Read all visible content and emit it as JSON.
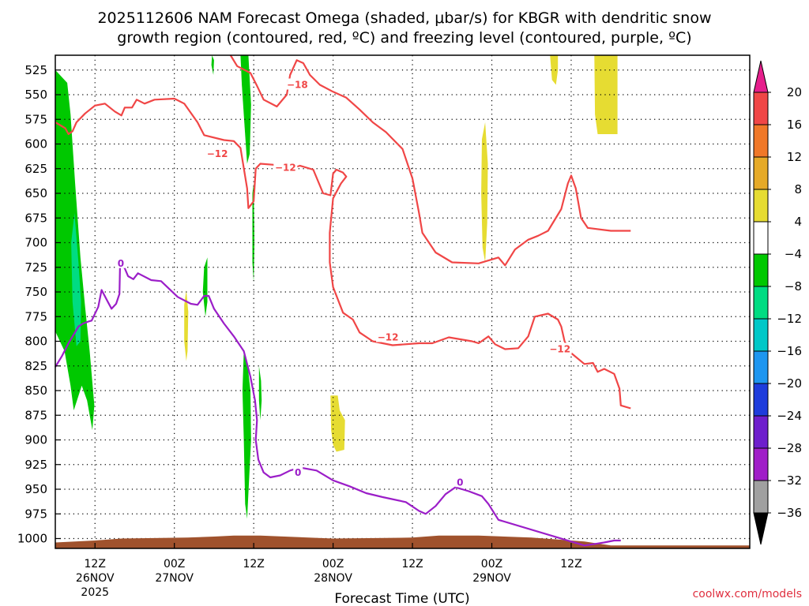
{
  "page": {
    "title_line1": "2025112606 NAM Forecast Omega (shaded, μbar/s) for KBGR with dendritic snow",
    "title_line2": "growth region (contoured, red, ºC) and freezing level (contoured, purple, ºC)",
    "credit": "coolwx.com/models"
  },
  "chart_data": {
    "type": "time-height cross section",
    "title": "2025112606 NAM Forecast Omega (shaded, μbar/s) for KBGR with dendritic snow growth region (contoured, red, ºC) and freezing level (contoured, purple, ºC)",
    "xlabel": "Forecast Time (UTC)",
    "ylabel": "",
    "x_hours_range": [
      6,
      111
    ],
    "y_range_hpa": [
      510,
      1010
    ],
    "y_ticks": [
      525,
      550,
      575,
      600,
      625,
      650,
      675,
      700,
      725,
      750,
      775,
      800,
      825,
      850,
      875,
      900,
      925,
      950,
      975,
      1000
    ],
    "x_ticks": [
      {
        "h": 12,
        "label": "12Z",
        "sub": "26NOV",
        "sub2": "2025"
      },
      {
        "h": 24,
        "label": "00Z",
        "sub": "27NOV",
        "sub2": ""
      },
      {
        "h": 36,
        "label": "12Z",
        "sub": "",
        "sub2": ""
      },
      {
        "h": 48,
        "label": "00Z",
        "sub": "28NOV",
        "sub2": ""
      },
      {
        "h": 60,
        "label": "12Z",
        "sub": "",
        "sub2": ""
      },
      {
        "h": 72,
        "label": "00Z",
        "sub": "29NOV",
        "sub2": ""
      },
      {
        "h": 84,
        "label": "12Z",
        "sub": "",
        "sub2": ""
      }
    ],
    "grid": true,
    "colorbar": {
      "labels": [
        "20",
        "16",
        "12",
        "8",
        "4",
        "−4",
        "−8",
        "−12",
        "−16",
        "−20",
        "−24",
        "−28",
        "−32",
        "−36"
      ],
      "colors": [
        "#e61e8c",
        "#f04646",
        "#f07828",
        "#e6aa28",
        "#e6dc32",
        "#ffffff",
        "#00c800",
        "#00dc82",
        "#00c8c8",
        "#1e96f0",
        "#1e3cdc",
        "#6e1ecc",
        "#a01ec8",
        "#a0a0a0",
        "#000000"
      ]
    },
    "omega_regions": [
      {
        "color": "#00c800",
        "points": [
          [
            6,
            525
          ],
          [
            7.8,
            538
          ],
          [
            8.3,
            570
          ],
          [
            9,
            640
          ],
          [
            9.8,
            715
          ],
          [
            10.5,
            765
          ],
          [
            11.2,
            810
          ],
          [
            11.9,
            865
          ],
          [
            11.6,
            890
          ],
          [
            10.8,
            860
          ],
          [
            10,
            845
          ],
          [
            8.8,
            870
          ],
          [
            8.3,
            845
          ],
          [
            7.4,
            810
          ],
          [
            6,
            790
          ]
        ]
      },
      {
        "color": "#00dc82",
        "points": [
          [
            8.4,
            700
          ],
          [
            8.9,
            670
          ],
          [
            9.5,
            720
          ],
          [
            9.9,
            760
          ],
          [
            9.8,
            800
          ],
          [
            9.2,
            805
          ],
          [
            8.6,
            760
          ]
        ]
      },
      {
        "color": "#00c800",
        "points": [
          [
            29.7,
            510
          ],
          [
            30,
            515
          ],
          [
            29.9,
            530
          ],
          [
            29.6,
            520
          ]
        ]
      },
      {
        "color": "#00c800",
        "points": [
          [
            28.5,
            725
          ],
          [
            29,
            715
          ],
          [
            29,
            760
          ],
          [
            28.7,
            775
          ],
          [
            28.3,
            750
          ]
        ]
      },
      {
        "color": "#00c800",
        "points": [
          [
            34,
            510
          ],
          [
            35.2,
            510
          ],
          [
            35.6,
            560
          ],
          [
            35.4,
            610
          ],
          [
            35,
            620
          ],
          [
            34.6,
            580
          ],
          [
            34.2,
            540
          ]
        ]
      },
      {
        "color": "#00c800",
        "points": [
          [
            35.8,
            650
          ],
          [
            36,
            640
          ],
          [
            36.1,
            700
          ],
          [
            36,
            740
          ],
          [
            35.8,
            720
          ]
        ]
      },
      {
        "color": "#00c800",
        "points": [
          [
            34.5,
            810
          ],
          [
            35,
            820
          ],
          [
            35.5,
            850
          ],
          [
            35.6,
            900
          ],
          [
            35.3,
            940
          ],
          [
            35,
            980
          ],
          [
            34.7,
            965
          ],
          [
            34.5,
            900
          ],
          [
            34.3,
            850
          ]
        ]
      },
      {
        "color": "#00c800",
        "points": [
          [
            36.8,
            825
          ],
          [
            37.1,
            840
          ],
          [
            37.2,
            860
          ],
          [
            37,
            880
          ],
          [
            36.8,
            860
          ]
        ]
      },
      {
        "color": "#e6dc32",
        "points": [
          [
            25.5,
            763
          ],
          [
            25.8,
            748
          ],
          [
            26.1,
            770
          ],
          [
            26,
            810
          ],
          [
            25.8,
            820
          ],
          [
            25.5,
            800
          ]
        ]
      },
      {
        "color": "#e6dc32",
        "points": [
          [
            47.6,
            855
          ],
          [
            48.7,
            855
          ],
          [
            49,
            870
          ],
          [
            49.8,
            880
          ],
          [
            49.7,
            910
          ],
          [
            48.5,
            912
          ],
          [
            48,
            905
          ],
          [
            47.7,
            890
          ]
        ]
      },
      {
        "color": "#e6dc32",
        "points": [
          [
            70.5,
            595
          ],
          [
            71,
            578
          ],
          [
            71.4,
            620
          ],
          [
            71.3,
            680
          ],
          [
            71,
            720
          ],
          [
            70.6,
            705
          ],
          [
            70.4,
            650
          ]
        ]
      },
      {
        "color": "#e6dc32",
        "points": [
          [
            80.8,
            510
          ],
          [
            82,
            510
          ],
          [
            82,
            525
          ],
          [
            81.7,
            540
          ],
          [
            81.1,
            535
          ]
        ]
      },
      {
        "color": "#e6dc32",
        "points": [
          [
            87.5,
            510
          ],
          [
            91,
            510
          ],
          [
            91,
            590
          ],
          [
            88,
            590
          ],
          [
            87.6,
            570
          ]
        ]
      }
    ],
    "terrain": {
      "color": "#a0522d",
      "points": [
        [
          6,
          1004
        ],
        [
          12,
          1002
        ],
        [
          16,
          1000
        ],
        [
          26,
          999
        ],
        [
          30,
          998
        ],
        [
          33,
          997
        ],
        [
          37,
          997
        ],
        [
          48,
          1000
        ],
        [
          60,
          999
        ],
        [
          64,
          997
        ],
        [
          70,
          997
        ],
        [
          78,
          999
        ],
        [
          86,
          1003
        ],
        [
          90,
          1007
        ],
        [
          111,
          1007
        ]
      ]
    },
    "isotherms": [
      {
        "label": "−12",
        "color": "#f04646",
        "label_at": [
          30.5,
          610
        ],
        "points": [
          [
            6,
            578
          ],
          [
            7.5,
            584
          ],
          [
            8,
            590
          ],
          [
            8.6,
            587
          ],
          [
            9.2,
            578
          ],
          [
            10.5,
            569
          ],
          [
            12,
            561
          ],
          [
            13.5,
            559
          ],
          [
            15,
            567
          ],
          [
            16,
            571
          ],
          [
            16.5,
            563
          ],
          [
            17.6,
            563
          ],
          [
            18.3,
            555
          ],
          [
            19.5,
            559
          ],
          [
            21,
            555
          ],
          [
            24,
            554
          ],
          [
            25.5,
            559
          ],
          [
            27.5,
            578
          ],
          [
            28.5,
            591
          ],
          [
            31.5,
            596
          ],
          [
            33,
            597
          ],
          [
            34,
            604
          ],
          [
            35,
            645
          ],
          [
            35.2,
            665
          ],
          [
            36,
            658
          ],
          [
            36.3,
            625
          ],
          [
            37,
            620
          ],
          [
            39,
            621
          ],
          [
            41,
            626
          ],
          [
            43,
            622
          ],
          [
            45,
            626
          ],
          [
            46.5,
            650
          ],
          [
            47.6,
            652
          ],
          [
            48,
            630
          ],
          [
            48.5,
            626
          ],
          [
            49.5,
            629
          ],
          [
            50,
            633
          ],
          [
            49.2,
            640
          ],
          [
            48,
            655
          ],
          [
            47.5,
            690
          ],
          [
            47.5,
            720
          ],
          [
            48,
            745
          ],
          [
            49.5,
            771
          ],
          [
            51,
            778
          ],
          [
            52,
            791
          ],
          [
            54,
            800
          ],
          [
            57,
            804
          ],
          [
            61,
            802
          ],
          [
            63,
            802
          ],
          [
            65.5,
            796
          ],
          [
            69,
            800
          ],
          [
            70,
            802
          ],
          [
            71.5,
            795
          ],
          [
            72.5,
            803
          ],
          [
            74,
            808
          ],
          [
            76,
            807
          ],
          [
            77.5,
            795
          ],
          [
            78.5,
            775
          ],
          [
            80.5,
            772
          ],
          [
            82,
            778
          ],
          [
            82.5,
            785
          ],
          [
            83,
            800
          ],
          [
            84,
            812
          ],
          [
            86,
            823
          ],
          [
            87.3,
            822
          ],
          [
            88,
            831
          ],
          [
            89,
            828
          ],
          [
            90.5,
            833
          ],
          [
            91.3,
            848
          ],
          [
            91.5,
            865
          ],
          [
            93,
            868
          ]
        ]
      },
      {
        "label": "−12",
        "color": "#f04646",
        "label_at": [
          56.3,
          796
        ],
        "points": []
      },
      {
        "label": "−12",
        "color": "#f04646",
        "label_at": [
          82.3,
          808
        ],
        "points": []
      },
      {
        "label": "−12",
        "color": "#f04646",
        "label_at": [
          40.8,
          624
        ],
        "points": []
      },
      {
        "label": "−18",
        "color": "#f04646",
        "label_at": [
          42.6,
          540
        ],
        "points": [
          [
            32.5,
            508
          ],
          [
            33.5,
            521
          ],
          [
            35.5,
            528
          ],
          [
            36.5,
            541
          ],
          [
            37.5,
            555
          ],
          [
            39.5,
            562
          ],
          [
            41,
            550
          ],
          [
            41.5,
            530
          ],
          [
            42.5,
            515
          ],
          [
            43.5,
            518
          ],
          [
            44.5,
            530
          ],
          [
            46,
            540
          ],
          [
            48,
            547
          ],
          [
            50,
            553
          ],
          [
            52,
            565
          ],
          [
            54,
            578
          ],
          [
            56,
            588
          ],
          [
            58.5,
            605
          ],
          [
            60,
            635
          ],
          [
            61,
            670
          ],
          [
            61.5,
            690
          ],
          [
            63.5,
            710
          ],
          [
            66,
            720
          ],
          [
            70,
            721
          ],
          [
            73,
            715
          ],
          [
            74,
            723
          ],
          [
            75.5,
            707
          ],
          [
            77.5,
            697
          ],
          [
            79,
            693
          ],
          [
            80.5,
            688
          ],
          [
            82.5,
            666
          ],
          [
            83.5,
            640
          ],
          [
            84,
            632
          ],
          [
            84.7,
            645
          ],
          [
            85.5,
            675
          ],
          [
            86.5,
            685
          ],
          [
            90,
            688
          ],
          [
            93,
            688
          ]
        ]
      }
    ],
    "freezing_level": {
      "label": "0",
      "color": "#9b1ec8",
      "label_at": [
        42.7,
        933
      ],
      "points": [
        [
          6,
          826
        ],
        [
          7,
          815
        ],
        [
          8,
          802
        ],
        [
          9.5,
          785
        ],
        [
          10.2,
          782
        ],
        [
          11,
          780
        ],
        [
          11.5,
          779
        ],
        [
          12.5,
          765
        ],
        [
          13,
          748
        ],
        [
          13.7,
          757
        ],
        [
          14.5,
          767
        ],
        [
          15.2,
          762
        ],
        [
          15.7,
          752
        ],
        [
          15.8,
          721
        ],
        [
          16.5,
          726
        ],
        [
          17,
          734
        ],
        [
          17.8,
          737
        ],
        [
          18.5,
          731
        ],
        [
          20.5,
          738
        ],
        [
          22,
          739
        ],
        [
          24.5,
          755
        ],
        [
          26.5,
          762
        ],
        [
          27.5,
          763
        ],
        [
          28.5,
          754
        ],
        [
          29.2,
          754
        ],
        [
          30,
          767
        ],
        [
          31.5,
          782
        ],
        [
          33,
          795
        ],
        [
          34.5,
          810
        ],
        [
          35.5,
          836
        ],
        [
          36.2,
          860
        ],
        [
          36.5,
          880
        ],
        [
          36.3,
          900
        ],
        [
          36.7,
          920
        ],
        [
          37.5,
          933
        ],
        [
          38.5,
          938
        ],
        [
          40,
          936
        ],
        [
          41.5,
          931
        ],
        [
          43,
          928
        ],
        [
          45.5,
          931
        ],
        [
          48,
          941
        ],
        [
          50.5,
          947
        ],
        [
          53,
          954
        ],
        [
          55.5,
          958
        ],
        [
          59,
          963
        ],
        [
          61,
          972
        ],
        [
          62,
          975
        ],
        [
          63.5,
          967
        ],
        [
          65,
          955
        ],
        [
          66.5,
          948
        ],
        [
          68.5,
          952
        ],
        [
          70.5,
          957
        ],
        [
          71.5,
          965
        ],
        [
          73,
          981
        ],
        [
          86,
          1007
        ],
        [
          88,
          1005
        ],
        [
          89,
          1004
        ],
        [
          90.5,
          1002
        ],
        [
          91.5,
          1002
        ]
      ]
    }
  }
}
